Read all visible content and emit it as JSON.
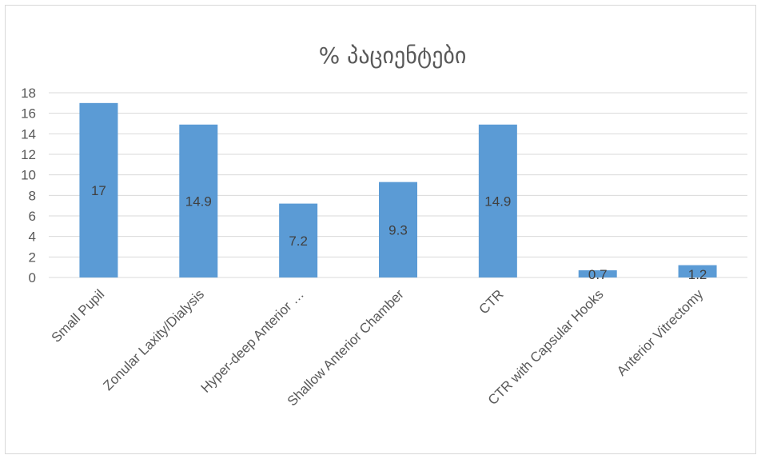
{
  "chart_data": {
    "type": "bar",
    "title": "% პაციენტები",
    "categories": [
      "Small Pupil",
      "Zonular Laxity/Dialysis",
      "Hyper-deep Anterior …",
      "Shallow Anterior Chamber",
      "CTR",
      "CTR with Capsular Hooks",
      "Anterior Vitrectomy"
    ],
    "values": [
      17,
      14.9,
      7.2,
      9.3,
      14.9,
      0.7,
      1.2
    ],
    "data_labels": [
      "17",
      "14.9",
      "7.2",
      "9.3",
      "14.9",
      "0.7",
      "1.2"
    ],
    "ylim": [
      0,
      18
    ],
    "yticks": [
      "0",
      "2",
      "4",
      "6",
      "8",
      "10",
      "12",
      "14",
      "16",
      "18"
    ],
    "grid": true,
    "legend": "none",
    "bar_color": "#5b9bd5",
    "grid_color": "#d9d9d9"
  }
}
